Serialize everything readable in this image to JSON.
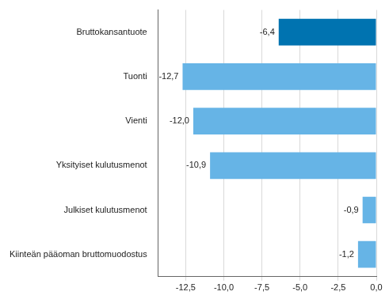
{
  "chart_data": {
    "type": "bar",
    "orientation": "horizontal",
    "categories": [
      "Bruttokansantuote",
      "Tuonti",
      "Vienti",
      "Yksityiset kulutusmenot",
      "Julkiset kulutusmenot",
      "Kiinteän pääoman bruttomuodostus"
    ],
    "values": [
      -6.4,
      -12.7,
      -12.0,
      -10.9,
      -0.9,
      -1.2
    ],
    "value_labels": [
      "-6,4",
      "-12,7",
      "-12,0",
      "-10,9",
      "-0,9",
      "-1,2"
    ],
    "colors": [
      "#0073b0",
      "#66b4e6",
      "#66b4e6",
      "#66b4e6",
      "#66b4e6",
      "#66b4e6"
    ],
    "xlim": [
      -14.3,
      0
    ],
    "xticks": [
      {
        "value": -12.5,
        "label": "-12,5"
      },
      {
        "value": -10,
        "label": "-10,0"
      },
      {
        "value": -7.5,
        "label": "-7,5"
      },
      {
        "value": -5,
        "label": "-5,0"
      },
      {
        "value": -2.5,
        "label": "-2,5"
      },
      {
        "value": 0,
        "label": "0,0"
      }
    ],
    "grid": true,
    "data_labels": true
  }
}
